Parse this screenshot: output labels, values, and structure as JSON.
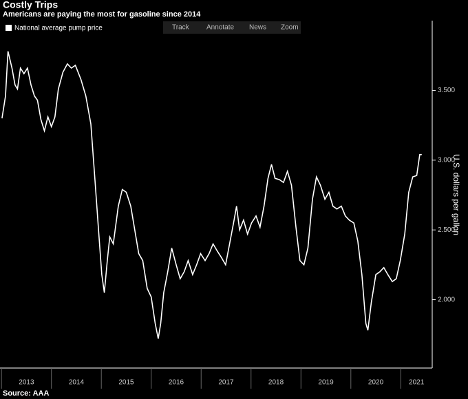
{
  "chart_data": {
    "type": "line",
    "title": "Costly Trips",
    "subtitle": "Americans are paying the most for gasoline since 2014",
    "y_label": "U.S. dollars per gallon",
    "source": "Source: AAA",
    "toolbar": [
      "Track",
      "Annotate",
      "News",
      "Zoom"
    ],
    "x": [
      2013.01,
      2013.08,
      2013.13,
      2013.21,
      2013.27,
      2013.32,
      2013.38,
      2013.45,
      2013.52,
      2013.59,
      2013.66,
      2013.72,
      2013.79,
      2013.86,
      2013.93,
      2014.0,
      2014.07,
      2014.14,
      2014.23,
      2014.32,
      2014.4,
      2014.48,
      2014.59,
      2014.69,
      2014.79,
      2014.87,
      2014.95,
      2015.01,
      2015.06,
      2015.12,
      2015.17,
      2015.24,
      2015.34,
      2015.42,
      2015.5,
      2015.59,
      2015.67,
      2015.75,
      2015.83,
      2015.92,
      2016.0,
      2016.08,
      2016.14,
      2016.19,
      2016.25,
      2016.33,
      2016.41,
      2016.5,
      2016.58,
      2016.66,
      2016.74,
      2016.83,
      2016.91,
      2016.99,
      2017.08,
      2017.16,
      2017.24,
      2017.32,
      2017.41,
      2017.49,
      2017.57,
      2017.66,
      2017.71,
      2017.77,
      2017.85,
      2017.93,
      2018.01,
      2018.1,
      2018.18,
      2018.26,
      2018.34,
      2018.41,
      2018.48,
      2018.57,
      2018.65,
      2018.73,
      2018.81,
      2018.9,
      2018.98,
      2019.06,
      2019.14,
      2019.23,
      2019.31,
      2019.39,
      2019.48,
      2019.56,
      2019.64,
      2019.72,
      2019.81,
      2019.89,
      2019.97,
      2020.06,
      2020.14,
      2020.22,
      2020.3,
      2020.34,
      2020.41,
      2020.5,
      2020.58,
      2020.66,
      2020.74,
      2020.83,
      2020.91,
      2020.99,
      2021.08,
      2021.16,
      2021.24,
      2021.32,
      2021.38,
      2021.42
    ],
    "series": [
      {
        "name": "National average pump price",
        "color": "#ffffff",
        "values": [
          3.3,
          3.46,
          3.78,
          3.66,
          3.54,
          3.51,
          3.66,
          3.62,
          3.66,
          3.54,
          3.46,
          3.43,
          3.29,
          3.21,
          3.31,
          3.24,
          3.31,
          3.51,
          3.63,
          3.69,
          3.66,
          3.68,
          3.58,
          3.46,
          3.26,
          2.87,
          2.47,
          2.18,
          2.05,
          2.28,
          2.45,
          2.4,
          2.67,
          2.79,
          2.77,
          2.67,
          2.5,
          2.33,
          2.28,
          2.08,
          2.02,
          1.83,
          1.72,
          1.83,
          2.05,
          2.2,
          2.37,
          2.25,
          2.15,
          2.2,
          2.28,
          2.18,
          2.25,
          2.33,
          2.28,
          2.33,
          2.4,
          2.35,
          2.3,
          2.25,
          2.4,
          2.57,
          2.67,
          2.5,
          2.57,
          2.47,
          2.55,
          2.6,
          2.52,
          2.67,
          2.87,
          2.97,
          2.87,
          2.86,
          2.84,
          2.92,
          2.82,
          2.52,
          2.28,
          2.25,
          2.37,
          2.72,
          2.88,
          2.82,
          2.72,
          2.77,
          2.67,
          2.65,
          2.67,
          2.6,
          2.57,
          2.55,
          2.42,
          2.18,
          1.83,
          1.78,
          1.98,
          2.18,
          2.2,
          2.23,
          2.18,
          2.13,
          2.15,
          2.28,
          2.47,
          2.77,
          2.88,
          2.89,
          3.04,
          3.04
        ]
      }
    ],
    "xlim": [
      2012.97,
      2021.63
    ],
    "xticks": [
      2013,
      2014,
      2015,
      2016,
      2017,
      2018,
      2019,
      2020,
      2021
    ],
    "ylim": [
      1.51,
      4.0
    ],
    "yticks": [
      {
        "value": 2.0,
        "label": "2.000"
      },
      {
        "value": 2.5,
        "label": "2.500"
      },
      {
        "value": 3.0,
        "label": "3.000"
      },
      {
        "value": 3.5,
        "label": "3.500"
      }
    ],
    "legend": "top-left"
  }
}
